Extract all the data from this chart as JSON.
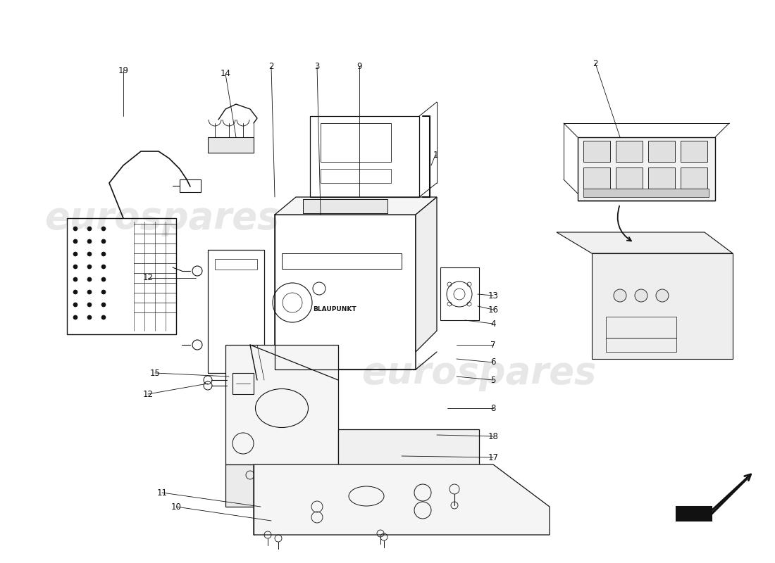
{
  "bg_color": "#ffffff",
  "line_color": "#111111",
  "watermark_text": "eurospares",
  "wm_color1": "#d0d0d0",
  "wm_color2": "#c8c8c8",
  "label_fontsize": 8.5,
  "label_color": "#111111"
}
